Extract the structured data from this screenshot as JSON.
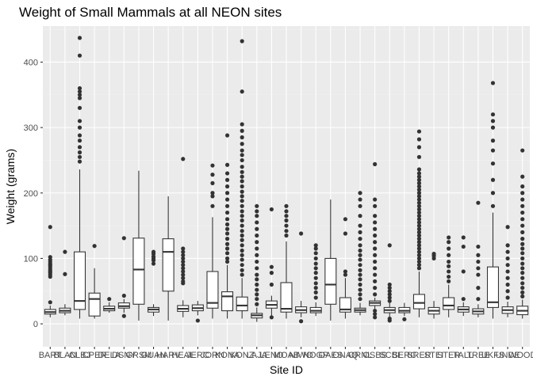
{
  "chart_data": {
    "type": "boxplot",
    "title": "Weight of Small Mammals at all NEON sites",
    "xlabel": "Site ID",
    "ylabel": "Weight (grams)",
    "ylim": [
      -35,
      455
    ],
    "y_ticks": [
      0,
      100,
      200,
      300,
      400
    ],
    "grid": true,
    "legend": "none",
    "colors": {
      "panel": "#ebebeb",
      "box_fill": "#ffffff",
      "line": "#333333",
      "outlier": "#333333"
    },
    "sites": [
      {
        "id": "BART",
        "min": 10,
        "q1": 15,
        "median": 18,
        "q3": 22,
        "max": 28,
        "outliers": [
          33,
          72,
          75,
          78,
          80,
          82,
          85,
          88,
          90,
          92,
          95,
          98,
          102,
          148
        ]
      },
      {
        "id": "BLAN",
        "min": 13,
        "q1": 17,
        "median": 20,
        "q3": 24,
        "max": 30,
        "outliers": [
          76,
          110
        ]
      },
      {
        "id": "CLBJ",
        "min": 8,
        "q1": 22,
        "median": 35,
        "q3": 110,
        "max": 236,
        "outliers": [
          248,
          255,
          262,
          270,
          280,
          288,
          300,
          310,
          330,
          345,
          350,
          355,
          360,
          410,
          437
        ]
      },
      {
        "id": "CPER",
        "min": 8,
        "q1": 12,
        "median": 38,
        "q3": 47,
        "max": 85,
        "outliers": [
          119
        ]
      },
      {
        "id": "DELA",
        "min": 17,
        "q1": 20,
        "median": 23,
        "q3": 27,
        "max": 33,
        "outliers": [
          38
        ]
      },
      {
        "id": "DSNY",
        "min": 17,
        "q1": 24,
        "median": 27,
        "q3": 32,
        "max": 38,
        "outliers": [
          12,
          43,
          131
        ]
      },
      {
        "id": "GRSM",
        "min": 5,
        "q1": 30,
        "median": 83,
        "q3": 131,
        "max": 234,
        "outliers": []
      },
      {
        "id": "GUAN",
        "min": 12,
        "q1": 18,
        "median": 22,
        "q3": 25,
        "max": 30,
        "outliers": [
          92,
          97,
          100,
          103,
          107,
          110
        ]
      },
      {
        "id": "HARV",
        "min": 5,
        "q1": 50,
        "median": 110,
        "q3": 130,
        "max": 195,
        "outliers": []
      },
      {
        "id": "HEAL",
        "min": 10,
        "q1": 19,
        "median": 23,
        "q3": 28,
        "max": 36,
        "outliers": [
          62,
          65,
          70,
          75,
          80,
          85,
          90,
          95,
          100,
          105,
          110,
          115,
          252
        ]
      },
      {
        "id": "JERC",
        "min": 13,
        "q1": 20,
        "median": 24,
        "q3": 29,
        "max": 35,
        "outliers": [
          5
        ]
      },
      {
        "id": "JORN",
        "min": 8,
        "q1": 24,
        "median": 32,
        "q3": 80,
        "max": 163,
        "outliers": [
          180,
          195,
          200,
          215,
          228,
          242
        ]
      },
      {
        "id": "KONA",
        "min": 8,
        "q1": 20,
        "median": 42,
        "q3": 49,
        "max": 90,
        "outliers": [
          95,
          100,
          108,
          115,
          122,
          130,
          138,
          145,
          152,
          160,
          170,
          180,
          190,
          200,
          210,
          220,
          230,
          243,
          288
        ]
      },
      {
        "id": "KONZ",
        "min": 8,
        "q1": 20,
        "median": 28,
        "q3": 41,
        "max": 70,
        "outliers": [
          75,
          82,
          90,
          98,
          105,
          112,
          120,
          128,
          135,
          142,
          150,
          158,
          165,
          172,
          180,
          188,
          195,
          202,
          210,
          218,
          225,
          232,
          240,
          250,
          258,
          265,
          275,
          285,
          295,
          305,
          355,
          432
        ]
      },
      {
        "id": "LAJA",
        "min": 3,
        "q1": 9,
        "median": 13,
        "q3": 16,
        "max": 25,
        "outliers": [
          30,
          38,
          45,
          52,
          60,
          68,
          75,
          85,
          95,
          105,
          115,
          125,
          135,
          145,
          155,
          165,
          172,
          180
        ]
      },
      {
        "id": "LENO",
        "min": 8,
        "q1": 24,
        "median": 29,
        "q3": 35,
        "max": 43,
        "outliers": [
          10,
          60,
          78,
          87,
          175
        ]
      },
      {
        "id": "MOAB",
        "min": 8,
        "q1": 18,
        "median": 23,
        "q3": 63,
        "max": 126,
        "outliers": [
          135,
          142,
          150,
          158,
          165,
          172,
          180
        ]
      },
      {
        "id": "NIWO",
        "min": 10,
        "q1": 17,
        "median": 21,
        "q3": 26,
        "max": 35,
        "outliers": [
          4,
          138
        ]
      },
      {
        "id": "NOGP",
        "min": 12,
        "q1": 17,
        "median": 20,
        "q3": 25,
        "max": 33,
        "outliers": [
          40,
          48,
          55,
          62,
          70,
          78,
          85,
          92,
          100,
          108,
          115,
          120
        ]
      },
      {
        "id": "OAES",
        "min": 5,
        "q1": 30,
        "median": 60,
        "q3": 100,
        "max": 190,
        "outliers": []
      },
      {
        "id": "ONAQ",
        "min": 8,
        "q1": 18,
        "median": 22,
        "q3": 40,
        "max": 70,
        "outliers": [
          75,
          80,
          138,
          160
        ]
      },
      {
        "id": "ORNL",
        "min": 13,
        "q1": 18,
        "median": 21,
        "q3": 24,
        "max": 32,
        "outliers": [
          38,
          45,
          52,
          60,
          68,
          75,
          82,
          90,
          98,
          105,
          112,
          120,
          130,
          140,
          150,
          165,
          180,
          190,
          200
        ]
      },
      {
        "id": "OSBS",
        "min": 23,
        "q1": 28,
        "median": 32,
        "q3": 35,
        "max": 40,
        "outliers": [
          10,
          15,
          20,
          45,
          55,
          65,
          75,
          85,
          95,
          105,
          115,
          125,
          135,
          145,
          155,
          165,
          180,
          190,
          244
        ]
      },
      {
        "id": "SCBI",
        "min": 10,
        "q1": 17,
        "median": 21,
        "q3": 25,
        "max": 32,
        "outliers": [
          5,
          8,
          35,
          40,
          45,
          50,
          55,
          60,
          120
        ]
      },
      {
        "id": "SERC",
        "min": 12,
        "q1": 17,
        "median": 20,
        "q3": 25,
        "max": 32,
        "outliers": [
          7
        ]
      },
      {
        "id": "SRER",
        "min": 10,
        "q1": 23,
        "median": 32,
        "q3": 45,
        "max": 80,
        "outliers": [
          85,
          90,
          95,
          100,
          105,
          110,
          115,
          120,
          125,
          130,
          135,
          140,
          145,
          150,
          155,
          160,
          165,
          170,
          175,
          180,
          185,
          190,
          195,
          200,
          205,
          210,
          215,
          220,
          225,
          230,
          236,
          255,
          270,
          282,
          294
        ]
      },
      {
        "id": "STEI",
        "min": 8,
        "q1": 15,
        "median": 20,
        "q3": 25,
        "max": 35,
        "outliers": [
          100,
          104,
          107
        ]
      },
      {
        "id": "STER",
        "min": 10,
        "q1": 22,
        "median": 28,
        "q3": 40,
        "max": 60,
        "outliers": [
          65,
          72,
          80,
          88,
          95,
          105,
          115,
          125,
          132
        ]
      },
      {
        "id": "TALL",
        "min": 12,
        "q1": 18,
        "median": 22,
        "q3": 26,
        "max": 33,
        "outliers": [
          38,
          80,
          118,
          132
        ]
      },
      {
        "id": "TREE",
        "min": 10,
        "q1": 15,
        "median": 19,
        "q3": 23,
        "max": 30,
        "outliers": [
          38,
          55,
          75,
          85,
          95,
          105,
          118,
          185
        ]
      },
      {
        "id": "UKFS",
        "min": 8,
        "q1": 25,
        "median": 33,
        "q3": 87,
        "max": 170,
        "outliers": [
          180,
          200,
          220,
          245,
          265,
          280,
          300,
          310,
          320,
          368
        ]
      },
      {
        "id": "UNDE",
        "min": 10,
        "q1": 16,
        "median": 21,
        "q3": 26,
        "max": 34,
        "outliers": [
          40,
          50,
          60,
          70,
          80,
          90,
          100,
          110,
          120,
          148
        ]
      },
      {
        "id": "WOOD",
        "min": 8,
        "q1": 14,
        "median": 20,
        "q3": 27,
        "max": 37,
        "outliers": [
          42,
          48,
          55,
          62,
          70,
          78,
          85,
          92,
          100,
          108,
          115,
          122,
          130,
          140,
          150,
          160,
          170,
          180,
          190,
          200,
          210,
          225,
          265
        ]
      }
    ]
  }
}
